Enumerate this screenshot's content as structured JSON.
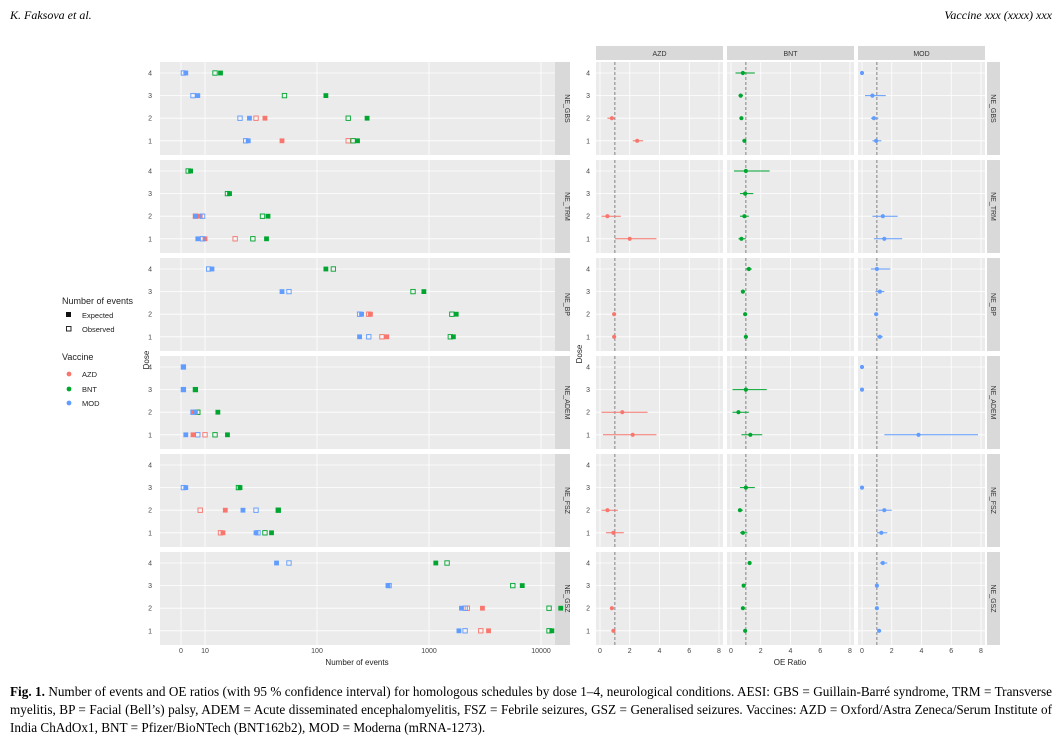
{
  "header": {
    "left": "K. Faksova et al.",
    "right": "Vaccine xxx (xxxx) xxx"
  },
  "legend": {
    "events_title": "Number of events",
    "expected": "Expected",
    "observed": "Observed",
    "vaccine_title": "Vaccine",
    "vaccines": [
      "AZD",
      "BNT",
      "MOD"
    ]
  },
  "colors": {
    "AZD": "#F8766D",
    "BNT": "#00A630",
    "MOD": "#619CFF",
    "panel": "#EBEBEB",
    "strip": "#D9D9D9"
  },
  "caption": {
    "label": "Fig. 1.",
    "text": "Number of events and OE ratios (with 95 % confidence interval) for homologous schedules by dose 1–4, neurological conditions. AESI: GBS = Guillain-Barré syndrome, TRM = Transverse myelitis, BP = Facial (Bell’s) palsy, ADEM = Acute disseminated encephalomyelitis, FSZ = Febrile seizures, GSZ = Generalised seizures. Vaccines: AZD = Oxford/Astra Zeneca/Serum Institute of India ChAdOx1, BNT = Pfizer/BioNTech (BNT162b2), MOD = Moderna (mRNA-1273)."
  },
  "chart_data": [
    {
      "type": "scatter",
      "title": "Number of events",
      "xlabel": "Number of events",
      "ylabel": "Dose",
      "x_scale": "pseudo-log",
      "x_ticks": [
        "0",
        "10",
        "100",
        "1000",
        "10000"
      ],
      "y_ticks": [
        "1",
        "2",
        "3",
        "4"
      ],
      "facets": [
        "NE_GBS",
        "NE_TRM",
        "NE_BP",
        "NE_ADEM",
        "NE_FSZ",
        "NE_GSZ"
      ],
      "series": [
        {
          "facet": "NE_GBS",
          "vaccine": "AZD",
          "expected": {
            "1": 75,
            "2": 48
          },
          "observed": {
            "1": 190,
            "2": 38
          }
        },
        {
          "facet": "NE_GBS",
          "vaccine": "BNT",
          "expected": {
            "1": 230,
            "2": 280,
            "3": 120,
            "4": 15
          },
          "observed": {
            "1": 210,
            "2": 190,
            "3": 80,
            "4": 13
          }
        },
        {
          "facet": "NE_GBS",
          "vaccine": "MOD",
          "expected": {
            "1": 31,
            "2": 32,
            "3": 7,
            "4": 2
          },
          "observed": {
            "1": 29,
            "2": 25,
            "3": 5,
            "4": 1
          }
        },
        {
          "facet": "NE_TRM",
          "vaccine": "AZD",
          "expected": {
            "1": 10,
            "2": 8
          },
          "observed": {
            "1": 22,
            "2": 6
          }
        },
        {
          "facet": "NE_TRM",
          "vaccine": "BNT",
          "expected": {
            "1": 50,
            "2": 52,
            "3": 19,
            "4": 4
          },
          "observed": {
            "1": 35,
            "2": 45,
            "3": 18,
            "4": 3
          }
        },
        {
          "facet": "NE_TRM",
          "vaccine": "MOD",
          "expected": {
            "1": 7,
            "2": 6
          },
          "observed": {
            "1": 9,
            "2": 9
          }
        },
        {
          "facet": "NE_BP",
          "vaccine": "AZD",
          "expected": {
            "1": 420,
            "2": 300
          },
          "observed": {
            "1": 380,
            "2": 290
          }
        },
        {
          "facet": "NE_BP",
          "vaccine": "BNT",
          "expected": {
            "1": 1650,
            "2": 1750,
            "3": 900,
            "4": 120
          },
          "observed": {
            "1": 1550,
            "2": 1600,
            "3": 720,
            "4": 140
          }
        },
        {
          "facet": "NE_BP",
          "vaccine": "MOD",
          "expected": {
            "1": 240,
            "2": 250,
            "3": 75,
            "4": 12
          },
          "observed": {
            "1": 290,
            "2": 240,
            "3": 90,
            "4": 11
          }
        },
        {
          "facet": "NE_ADEM",
          "vaccine": "AZD",
          "expected": {
            "1": 5,
            "2": 5
          },
          "observed": {
            "1": 10,
            "2": 7
          }
        },
        {
          "facet": "NE_ADEM",
          "vaccine": "BNT",
          "expected": {
            "1": 18,
            "2": 14,
            "3": 6
          },
          "observed": {
            "1": 13,
            "2": 7,
            "3": 6
          }
        },
        {
          "facet": "NE_ADEM",
          "vaccine": "MOD",
          "expected": {
            "1": 2,
            "2": 6,
            "3": 1,
            "4": 1
          },
          "observed": {
            "1": 7,
            "2": 5,
            "3": 1,
            "4": 1
          }
        },
        {
          "facet": "NE_FSZ",
          "vaccine": "AZD",
          "expected": {
            "1": 16,
            "2": 17
          },
          "observed": {
            "1": 15,
            "2": 8
          }
        },
        {
          "facet": "NE_FSZ",
          "vaccine": "BNT",
          "expected": {
            "1": 57,
            "2": 68,
            "3": 25
          },
          "observed": {
            "1": 48,
            "2": 68,
            "3": 24
          }
        },
        {
          "facet": "NE_FSZ",
          "vaccine": "MOD",
          "expected": {
            "1": 38,
            "2": 27,
            "3": 2
          },
          "observed": {
            "1": 40,
            "2": 38,
            "3": 1
          }
        },
        {
          "facet": "NE_GSZ",
          "vaccine": "AZD",
          "expected": {
            "1": 3400,
            "2": 3000
          },
          "observed": {
            "1": 2900,
            "2": 2200
          }
        },
        {
          "facet": "NE_GSZ",
          "vaccine": "BNT",
          "expected": {
            "1": 12500,
            "2": 15000,
            "3": 6800,
            "4": 1150
          },
          "observed": {
            "1": 11800,
            "2": 11800,
            "3": 5600,
            "4": 1450
          }
        },
        {
          "facet": "NE_GSZ",
          "vaccine": "MOD",
          "expected": {
            "1": 1850,
            "2": 1950,
            "3": 430,
            "4": 65
          },
          "observed": {
            "1": 2100,
            "2": 2100,
            "3": 440,
            "4": 90
          }
        }
      ]
    },
    {
      "type": "scatter",
      "title": "OE Ratio",
      "xlabel": "OE Ratio",
      "ylabel": "Dose",
      "xlim": [
        0,
        8
      ],
      "x_ticks": [
        "0",
        "2",
        "4",
        "6",
        "8"
      ],
      "y_ticks": [
        "1",
        "2",
        "3",
        "4"
      ],
      "reference_line": 1,
      "columns": [
        "AZD",
        "BNT",
        "MOD"
      ],
      "rows": [
        "NE_GBS",
        "NE_TRM",
        "NE_BP",
        "NE_ADEM",
        "NE_FSZ",
        "NE_GSZ"
      ],
      "points": [
        {
          "facet": "NE_GBS",
          "vaccine": "AZD",
          "dose": 1,
          "oe": 2.5,
          "lo": 2.2,
          "hi": 2.9
        },
        {
          "facet": "NE_GBS",
          "vaccine": "AZD",
          "dose": 2,
          "oe": 0.8,
          "lo": 0.5,
          "hi": 1.0
        },
        {
          "facet": "NE_GBS",
          "vaccine": "BNT",
          "dose": 1,
          "oe": 0.9,
          "lo": 0.8,
          "hi": 1.0
        },
        {
          "facet": "NE_GBS",
          "vaccine": "BNT",
          "dose": 2,
          "oe": 0.7,
          "lo": 0.6,
          "hi": 0.8
        },
        {
          "facet": "NE_GBS",
          "vaccine": "BNT",
          "dose": 3,
          "oe": 0.65,
          "lo": 0.5,
          "hi": 0.8
        },
        {
          "facet": "NE_GBS",
          "vaccine": "BNT",
          "dose": 4,
          "oe": 0.8,
          "lo": 0.3,
          "hi": 1.6
        },
        {
          "facet": "NE_GBS",
          "vaccine": "MOD",
          "dose": 1,
          "oe": 0.95,
          "lo": 0.7,
          "hi": 1.3
        },
        {
          "facet": "NE_GBS",
          "vaccine": "MOD",
          "dose": 2,
          "oe": 0.8,
          "lo": 0.6,
          "hi": 1.1
        },
        {
          "facet": "NE_GBS",
          "vaccine": "MOD",
          "dose": 3,
          "oe": 0.7,
          "lo": 0.2,
          "hi": 1.6
        },
        {
          "facet": "NE_GBS",
          "vaccine": "MOD",
          "dose": 4,
          "oe": 0.0
        },
        {
          "facet": "NE_TRM",
          "vaccine": "AZD",
          "dose": 1,
          "oe": 2.0,
          "lo": 1.0,
          "hi": 3.8
        },
        {
          "facet": "NE_TRM",
          "vaccine": "AZD",
          "dose": 2,
          "oe": 0.5,
          "lo": 0.1,
          "hi": 1.4
        },
        {
          "facet": "NE_TRM",
          "vaccine": "BNT",
          "dose": 1,
          "oe": 0.7,
          "lo": 0.5,
          "hi": 1.0
        },
        {
          "facet": "NE_TRM",
          "vaccine": "BNT",
          "dose": 2,
          "oe": 0.9,
          "lo": 0.6,
          "hi": 1.2
        },
        {
          "facet": "NE_TRM",
          "vaccine": "BNT",
          "dose": 3,
          "oe": 0.95,
          "lo": 0.6,
          "hi": 1.5
        },
        {
          "facet": "NE_TRM",
          "vaccine": "BNT",
          "dose": 4,
          "oe": 1.0,
          "lo": 0.2,
          "hi": 2.6
        },
        {
          "facet": "NE_TRM",
          "vaccine": "MOD",
          "dose": 1,
          "oe": 1.5,
          "lo": 0.8,
          "hi": 2.7
        },
        {
          "facet": "NE_TRM",
          "vaccine": "MOD",
          "dose": 2,
          "oe": 1.4,
          "lo": 0.7,
          "hi": 2.4
        },
        {
          "facet": "NE_BP",
          "vaccine": "AZD",
          "dose": 1,
          "oe": 0.95,
          "lo": 0.85,
          "hi": 1.05
        },
        {
          "facet": "NE_BP",
          "vaccine": "AZD",
          "dose": 2,
          "oe": 0.95,
          "lo": 0.85,
          "hi": 1.05
        },
        {
          "facet": "NE_BP",
          "vaccine": "BNT",
          "dose": 1,
          "oe": 1.0,
          "lo": 0.95,
          "hi": 1.05
        },
        {
          "facet": "NE_BP",
          "vaccine": "BNT",
          "dose": 2,
          "oe": 0.95,
          "lo": 0.9,
          "hi": 1.0
        },
        {
          "facet": "NE_BP",
          "vaccine": "BNT",
          "dose": 3,
          "oe": 0.8,
          "lo": 0.75,
          "hi": 0.9
        },
        {
          "facet": "NE_BP",
          "vaccine": "BNT",
          "dose": 4,
          "oe": 1.2,
          "lo": 1.0,
          "hi": 1.4
        },
        {
          "facet": "NE_BP",
          "vaccine": "MOD",
          "dose": 1,
          "oe": 1.2,
          "lo": 1.0,
          "hi": 1.4
        },
        {
          "facet": "NE_BP",
          "vaccine": "MOD",
          "dose": 2,
          "oe": 0.95,
          "lo": 0.85,
          "hi": 1.1
        },
        {
          "facet": "NE_BP",
          "vaccine": "MOD",
          "dose": 3,
          "oe": 1.2,
          "lo": 0.9,
          "hi": 1.5
        },
        {
          "facet": "NE_BP",
          "vaccine": "MOD",
          "dose": 4,
          "oe": 1.0,
          "lo": 0.6,
          "hi": 1.9
        },
        {
          "facet": "NE_ADEM",
          "vaccine": "AZD",
          "dose": 1,
          "oe": 2.2,
          "lo": 0.2,
          "hi": 3.8
        },
        {
          "facet": "NE_ADEM",
          "vaccine": "AZD",
          "dose": 2,
          "oe": 1.5,
          "lo": 0.1,
          "hi": 3.2
        },
        {
          "facet": "NE_ADEM",
          "vaccine": "BNT",
          "dose": 1,
          "oe": 1.3,
          "lo": 0.7,
          "hi": 2.1
        },
        {
          "facet": "NE_ADEM",
          "vaccine": "BNT",
          "dose": 2,
          "oe": 0.5,
          "lo": 0.1,
          "hi": 1.2
        },
        {
          "facet": "NE_ADEM",
          "vaccine": "BNT",
          "dose": 3,
          "oe": 1.0,
          "lo": 0.1,
          "hi": 2.4
        },
        {
          "facet": "NE_ADEM",
          "vaccine": "MOD",
          "dose": 1,
          "oe": 3.8,
          "lo": 1.5,
          "hi": 7.8
        },
        {
          "facet": "NE_ADEM",
          "vaccine": "MOD",
          "dose": 3,
          "oe": 0.0
        },
        {
          "facet": "NE_ADEM",
          "vaccine": "MOD",
          "dose": 4,
          "oe": 0.0
        },
        {
          "facet": "NE_FSZ",
          "vaccine": "AZD",
          "dose": 1,
          "oe": 0.9,
          "lo": 0.4,
          "hi": 1.6
        },
        {
          "facet": "NE_FSZ",
          "vaccine": "AZD",
          "dose": 2,
          "oe": 0.5,
          "lo": 0.1,
          "hi": 1.2
        },
        {
          "facet": "NE_FSZ",
          "vaccine": "BNT",
          "dose": 1,
          "oe": 0.8,
          "lo": 0.6,
          "hi": 1.1
        },
        {
          "facet": "NE_FSZ",
          "vaccine": "BNT",
          "dose": 2,
          "oe": 0.6,
          "lo": 0.5,
          "hi": 0.8
        },
        {
          "facet": "NE_FSZ",
          "vaccine": "BNT",
          "dose": 3,
          "oe": 1.0,
          "lo": 0.6,
          "hi": 1.6
        },
        {
          "facet": "NE_FSZ",
          "vaccine": "MOD",
          "dose": 1,
          "oe": 1.3,
          "lo": 1.0,
          "hi": 1.7
        },
        {
          "facet": "NE_FSZ",
          "vaccine": "MOD",
          "dose": 2,
          "oe": 1.5,
          "lo": 1.1,
          "hi": 2.0
        },
        {
          "facet": "NE_FSZ",
          "vaccine": "MOD",
          "dose": 3,
          "oe": 0.0
        },
        {
          "facet": "NE_GSZ",
          "vaccine": "AZD",
          "dose": 1,
          "oe": 0.9,
          "lo": 0.85,
          "hi": 0.95
        },
        {
          "facet": "NE_GSZ",
          "vaccine": "AZD",
          "dose": 2,
          "oe": 0.8,
          "lo": 0.75,
          "hi": 0.85
        },
        {
          "facet": "NE_GSZ",
          "vaccine": "BNT",
          "dose": 1,
          "oe": 0.95,
          "lo": 0.9,
          "hi": 1.0
        },
        {
          "facet": "NE_GSZ",
          "vaccine": "BNT",
          "dose": 2,
          "oe": 0.8,
          "lo": 0.75,
          "hi": 0.85
        },
        {
          "facet": "NE_GSZ",
          "vaccine": "BNT",
          "dose": 3,
          "oe": 0.85,
          "lo": 0.8,
          "hi": 0.9
        },
        {
          "facet": "NE_GSZ",
          "vaccine": "BNT",
          "dose": 4,
          "oe": 1.25,
          "lo": 1.15,
          "hi": 1.35
        },
        {
          "facet": "NE_GSZ",
          "vaccine": "MOD",
          "dose": 1,
          "oe": 1.15,
          "lo": 1.05,
          "hi": 1.25
        },
        {
          "facet": "NE_GSZ",
          "vaccine": "MOD",
          "dose": 2,
          "oe": 1.0,
          "lo": 0.9,
          "hi": 1.1
        },
        {
          "facet": "NE_GSZ",
          "vaccine": "MOD",
          "dose": 3,
          "oe": 1.0,
          "lo": 0.95,
          "hi": 1.1
        },
        {
          "facet": "NE_GSZ",
          "vaccine": "MOD",
          "dose": 4,
          "oe": 1.4,
          "lo": 1.2,
          "hi": 1.7
        }
      ]
    }
  ]
}
